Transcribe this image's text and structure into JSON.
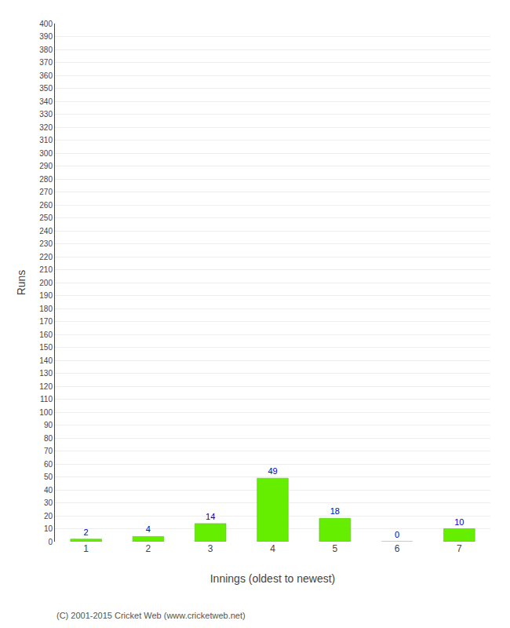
{
  "chart_data": {
    "type": "bar",
    "categories": [
      "1",
      "2",
      "3",
      "4",
      "5",
      "6",
      "7"
    ],
    "values": [
      2,
      4,
      14,
      49,
      18,
      0,
      10
    ],
    "color": "#66ee00",
    "xlabel": "Innings (oldest to newest)",
    "ylabel": "Runs",
    "ylim": [
      0,
      400
    ],
    "yticks": [
      0,
      10,
      20,
      30,
      40,
      50,
      60,
      70,
      80,
      90,
      100,
      110,
      120,
      130,
      140,
      150,
      160,
      170,
      180,
      190,
      200,
      210,
      220,
      230,
      240,
      250,
      260,
      270,
      280,
      290,
      300,
      310,
      320,
      330,
      340,
      350,
      360,
      370,
      380,
      390,
      400
    ],
    "grid": true,
    "data_labels": true,
    "annotations": [
      "(C) 2001-2015 Cricket Web (www.cricketweb.net)"
    ]
  }
}
